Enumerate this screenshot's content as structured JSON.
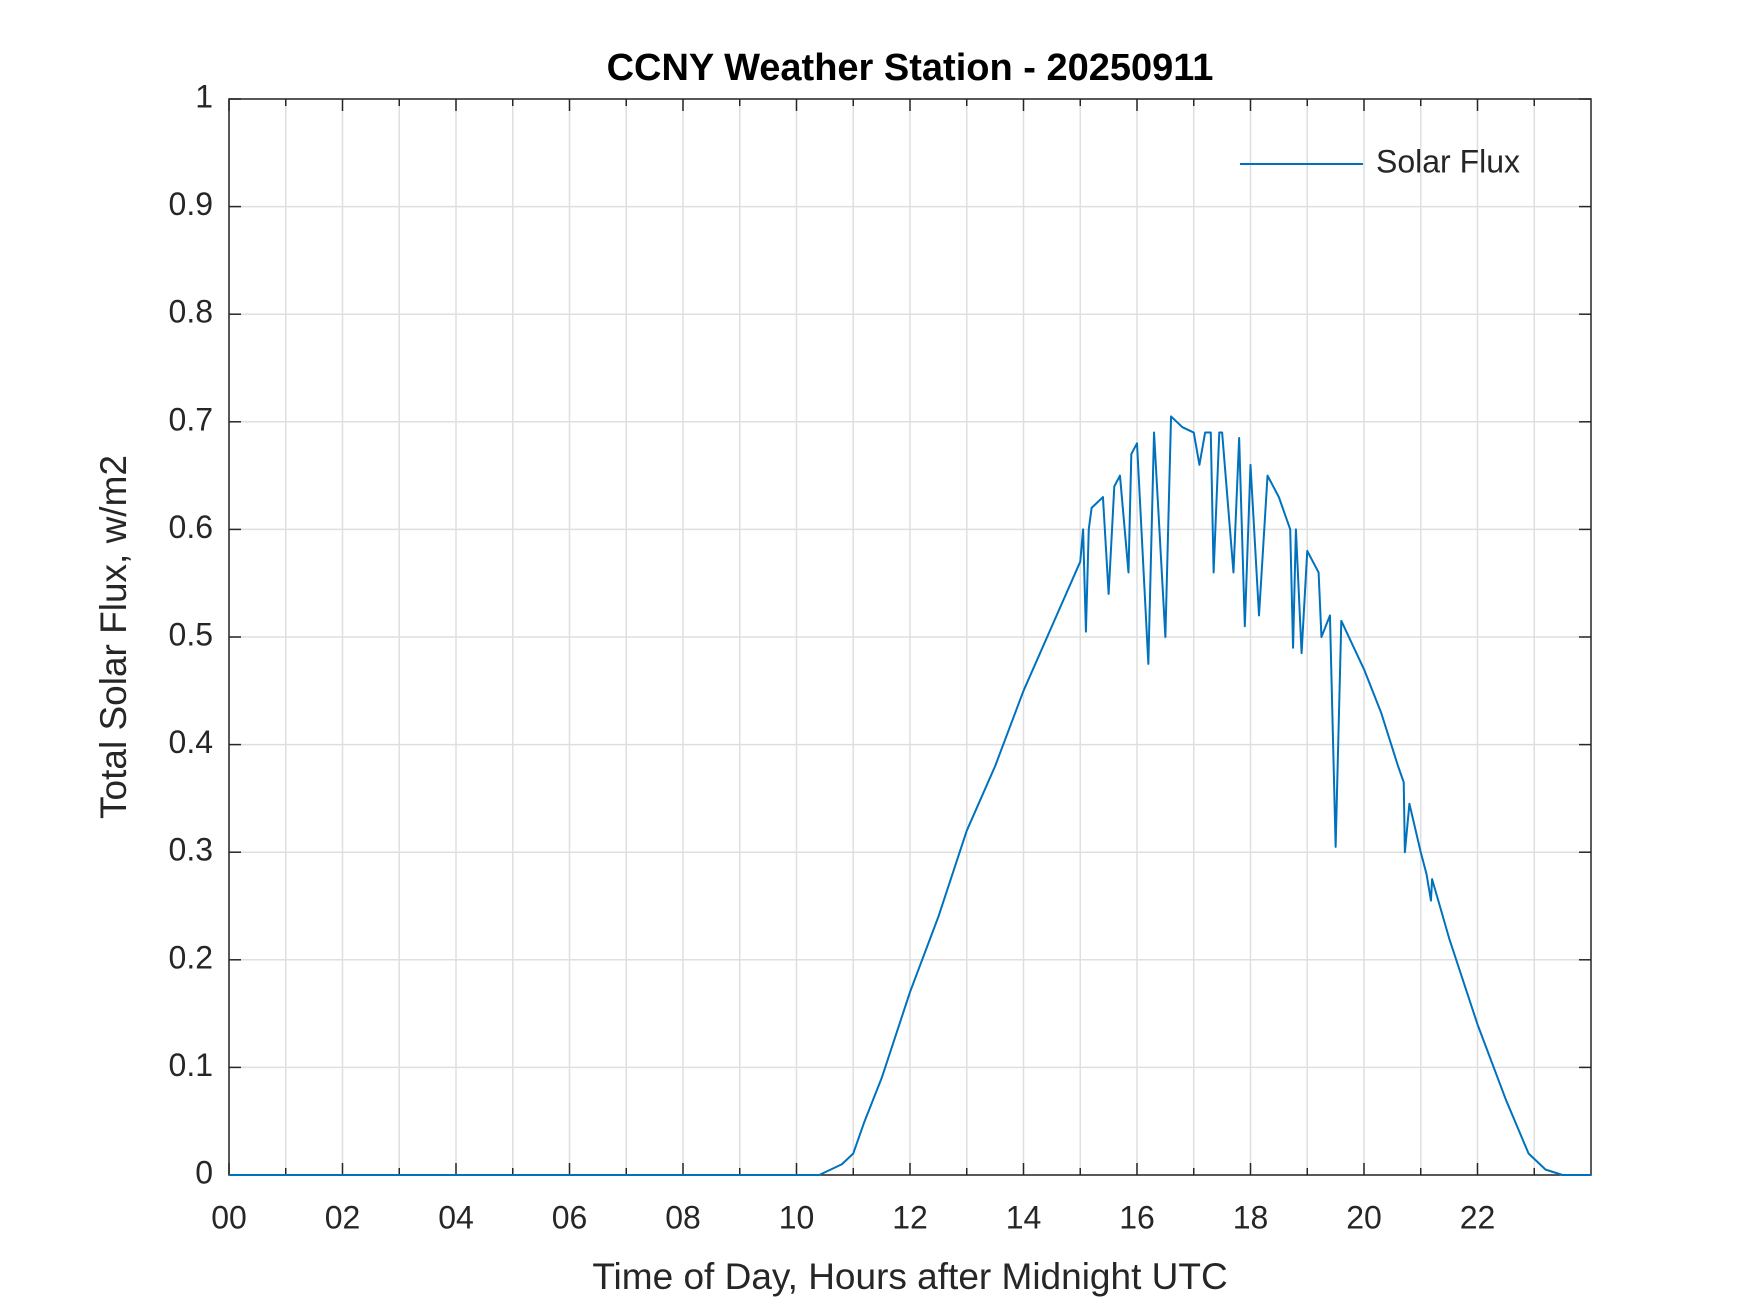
{
  "chart_data": {
    "type": "line",
    "title": "CCNY Weather Station - 20250911",
    "x_label": "Time of Day, Hours after Midnight UTC",
    "y_label": "Total Solar Flux, w/m2",
    "xlim": [
      0,
      24
    ],
    "ylim": [
      0,
      1
    ],
    "xticks": [
      {
        "value": 0,
        "label": "00"
      },
      {
        "value": 2,
        "label": "02"
      },
      {
        "value": 4,
        "label": "04"
      },
      {
        "value": 6,
        "label": "06"
      },
      {
        "value": 8,
        "label": "08"
      },
      10,
      12,
      14,
      16,
      18,
      20,
      22
    ],
    "xminorticks": [
      1,
      3,
      5,
      7,
      9,
      11,
      13,
      15,
      17,
      19,
      21,
      23
    ],
    "yticks": [
      0,
      0.1,
      0.2,
      0.3,
      0.4,
      0.5,
      0.6,
      0.7,
      0.8,
      0.9,
      1
    ],
    "grid": true,
    "legend_position": "upper-right",
    "series": [
      {
        "name": "Solar Flux",
        "color": "#0072bd",
        "x": [
          0,
          10.4,
          10.8,
          11.0,
          11.2,
          11.5,
          12.0,
          12.5,
          13.0,
          13.5,
          14.0,
          14.5,
          15.0,
          15.05,
          15.1,
          15.15,
          15.2,
          15.4,
          15.5,
          15.6,
          15.7,
          15.85,
          15.9,
          16.0,
          16.2,
          16.3,
          16.5,
          16.6,
          16.8,
          17.0,
          17.1,
          17.2,
          17.3,
          17.35,
          17.45,
          17.5,
          17.7,
          17.8,
          17.9,
          18.0,
          18.15,
          18.3,
          18.5,
          18.7,
          18.75,
          18.8,
          18.9,
          19.0,
          19.2,
          19.25,
          19.4,
          19.5,
          19.6,
          20.0,
          20.3,
          20.6,
          20.7,
          20.72,
          20.8,
          21.0,
          21.1,
          21.18,
          21.2,
          21.5,
          22.0,
          22.5,
          22.9,
          23.0,
          23.2,
          23.5,
          24.0
        ],
        "values": [
          0,
          0,
          0.01,
          0.02,
          0.05,
          0.09,
          0.17,
          0.24,
          0.32,
          0.38,
          0.45,
          0.51,
          0.57,
          0.6,
          0.505,
          0.6,
          0.62,
          0.63,
          0.54,
          0.64,
          0.65,
          0.56,
          0.67,
          0.68,
          0.475,
          0.69,
          0.5,
          0.705,
          0.695,
          0.69,
          0.66,
          0.69,
          0.69,
          0.56,
          0.69,
          0.69,
          0.56,
          0.685,
          0.51,
          0.66,
          0.52,
          0.65,
          0.63,
          0.6,
          0.49,
          0.6,
          0.485,
          0.58,
          0.56,
          0.5,
          0.52,
          0.305,
          0.515,
          0.47,
          0.43,
          0.38,
          0.365,
          0.3,
          0.345,
          0.3,
          0.28,
          0.255,
          0.275,
          0.22,
          0.14,
          0.07,
          0.02,
          0.015,
          0.005,
          0,
          0
        ]
      }
    ]
  }
}
